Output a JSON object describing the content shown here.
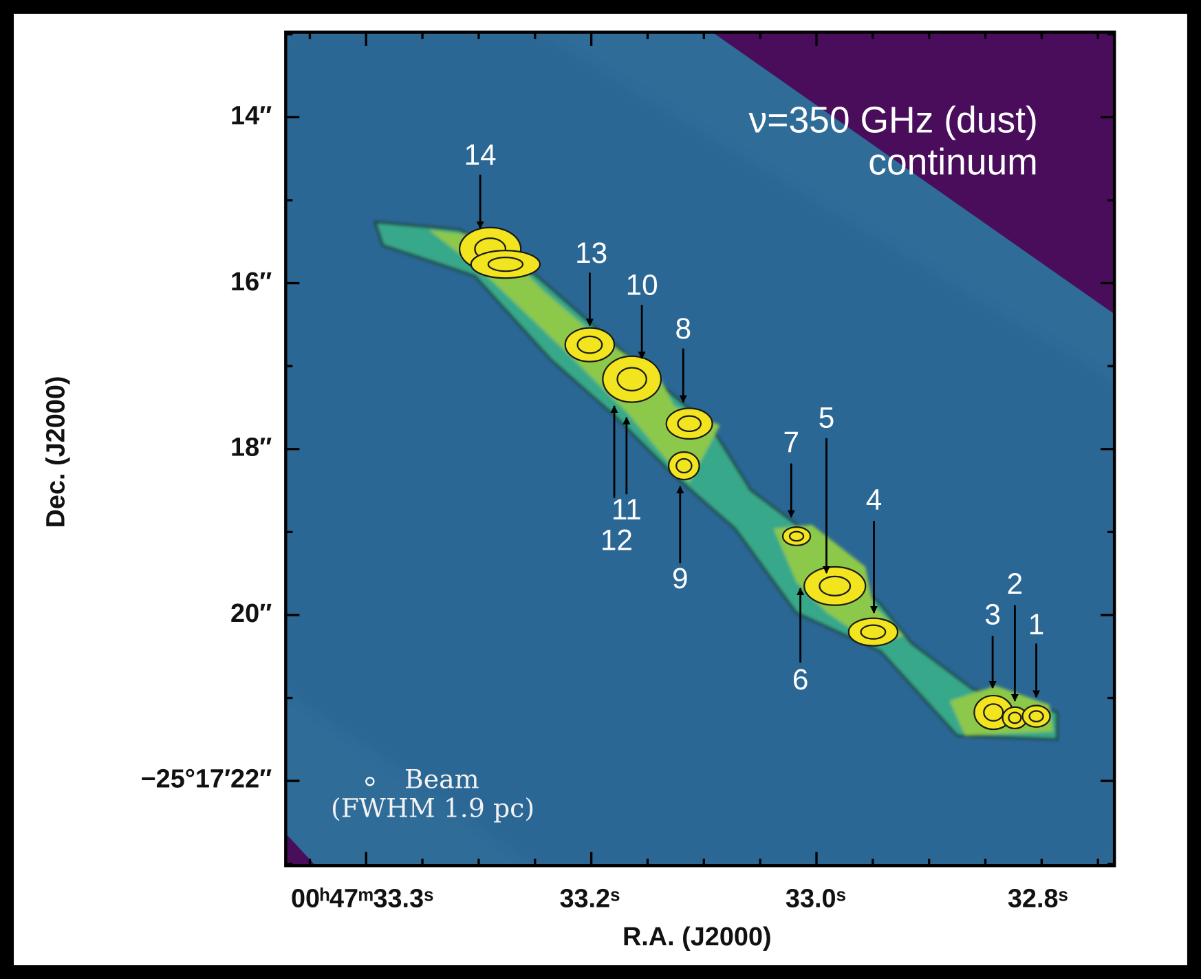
{
  "figure": {
    "title_lines": [
      "ν=350 GHz (dust)",
      "continuum"
    ],
    "x_axis": {
      "title": "R.A. (J2000)",
      "ticks": [
        "00ʰ47ᵐ33.3ˢ",
        "33.2ˢ",
        "33.0ˢ",
        "32.8ˢ"
      ]
    },
    "y_axis": {
      "title": "Dec. (J2000)",
      "ticks": [
        "14″",
        "16″",
        "18″",
        "20″",
        "−25°17′22″"
      ]
    },
    "sources": [
      "1",
      "2",
      "3",
      "4",
      "5",
      "6",
      "7",
      "8",
      "9",
      "10",
      "11",
      "12",
      "13",
      "14"
    ],
    "beam": {
      "label": "Beam",
      "note": "(FWHM 1.9 pc)"
    }
  }
}
